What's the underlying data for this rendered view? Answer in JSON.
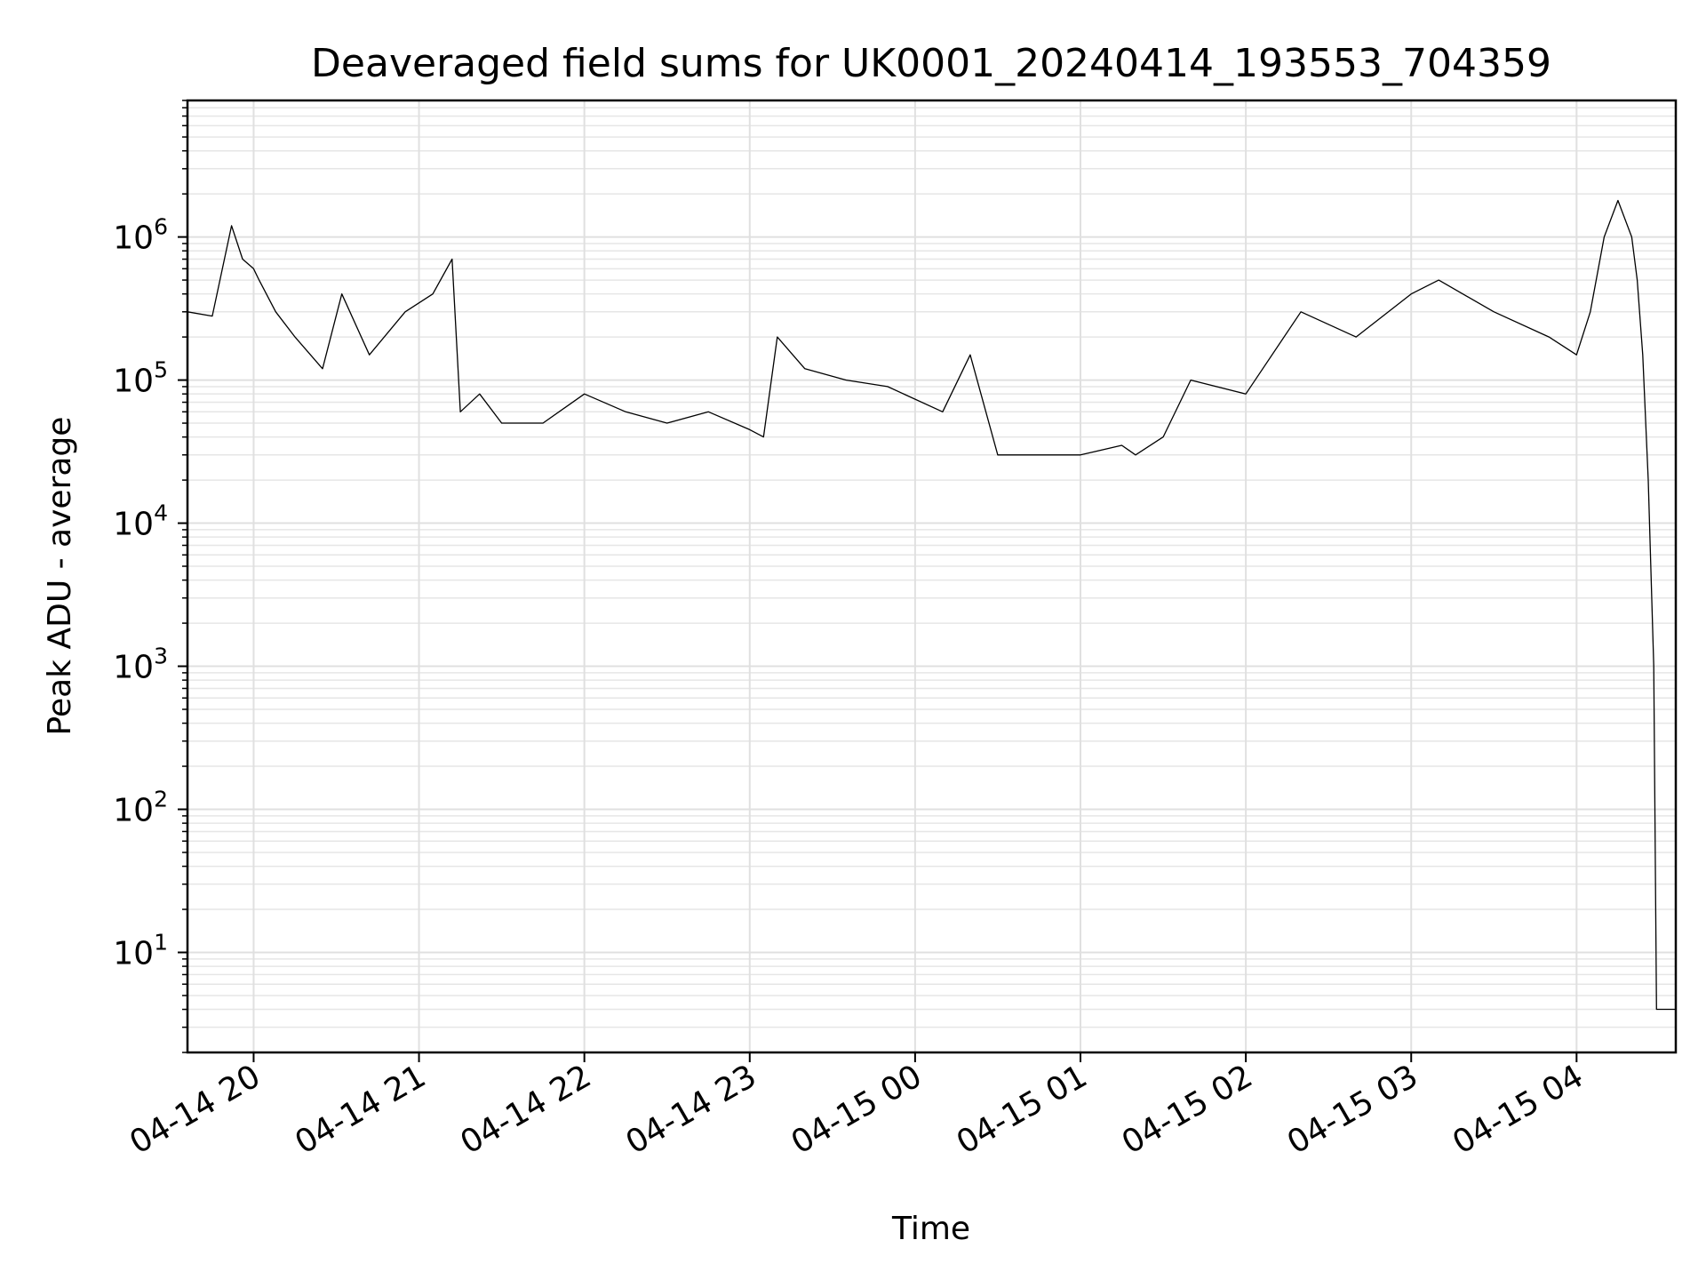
{
  "chart_data": {
    "type": "line",
    "title": "Deaveraged field sums for UK0001_20240414_193553_704359",
    "xlabel": "Time",
    "ylabel": "Peak ADU - average",
    "yscale": "log",
    "grid": true,
    "grid_minor": true,
    "line_color": "#000000",
    "xlim": [
      "2024-04-14 19:36",
      "2024-04-15 04:36"
    ],
    "ylim": [
      2,
      9000000
    ],
    "x_ticks": [
      "04-14 20",
      "04-14 21",
      "04-14 22",
      "04-14 23",
      "04-15 00",
      "04-15 01",
      "04-15 02",
      "04-15 03",
      "04-15 04"
    ],
    "y_ticks": [
      {
        "base": "10",
        "exp": "1"
      },
      {
        "base": "10",
        "exp": "2"
      },
      {
        "base": "10",
        "exp": "3"
      },
      {
        "base": "10",
        "exp": "4"
      },
      {
        "base": "10",
        "exp": "5"
      },
      {
        "base": "10",
        "exp": "6"
      }
    ],
    "series": [
      {
        "x": [
          "2024-04-14 19:36",
          "2024-04-14 19:45",
          "2024-04-14 19:52",
          "2024-04-14 19:56",
          "2024-04-14 20:00",
          "2024-04-14 20:02",
          "2024-04-14 20:08",
          "2024-04-14 20:15",
          "2024-04-14 20:25",
          "2024-04-14 20:32",
          "2024-04-14 20:42",
          "2024-04-14 20:55",
          "2024-04-14 21:05",
          "2024-04-14 21:12",
          "2024-04-14 21:15",
          "2024-04-14 21:22",
          "2024-04-14 21:30",
          "2024-04-14 21:45",
          "2024-04-14 22:00",
          "2024-04-14 22:15",
          "2024-04-14 22:30",
          "2024-04-14 22:45",
          "2024-04-14 23:00",
          "2024-04-14 23:05",
          "2024-04-14 23:10",
          "2024-04-14 23:20",
          "2024-04-14 23:35",
          "2024-04-14 23:50",
          "2024-04-15 00:10",
          "2024-04-15 00:20",
          "2024-04-15 00:30",
          "2024-04-15 00:45",
          "2024-04-15 01:00",
          "2024-04-15 01:15",
          "2024-04-15 01:20",
          "2024-04-15 01:30",
          "2024-04-15 01:40",
          "2024-04-15 02:00",
          "2024-04-15 02:20",
          "2024-04-15 02:40",
          "2024-04-15 03:00",
          "2024-04-15 03:10",
          "2024-04-15 03:30",
          "2024-04-15 03:50",
          "2024-04-15 04:00",
          "2024-04-15 04:05",
          "2024-04-15 04:10",
          "2024-04-15 04:15",
          "2024-04-15 04:20",
          "2024-04-15 04:22",
          "2024-04-15 04:24",
          "2024-04-15 04:26",
          "2024-04-15 04:28",
          "2024-04-15 04:29",
          "2024-04-15 04:30",
          "2024-04-15 04:36"
        ],
        "y": [
          300000,
          280000,
          1200000,
          700000,
          600000,
          500000,
          300000,
          200000,
          120000,
          400000,
          150000,
          300000,
          400000,
          700000,
          60000,
          80000,
          50000,
          50000,
          80000,
          60000,
          50000,
          60000,
          45000,
          40000,
          200000,
          120000,
          100000,
          90000,
          60000,
          150000,
          30000,
          30000,
          30000,
          35000,
          30000,
          40000,
          100000,
          80000,
          300000,
          200000,
          400000,
          500000,
          300000,
          200000,
          150000,
          300000,
          1000000,
          1800000,
          1000000,
          500000,
          150000,
          20000,
          1000,
          4,
          4,
          4
        ]
      }
    ]
  }
}
